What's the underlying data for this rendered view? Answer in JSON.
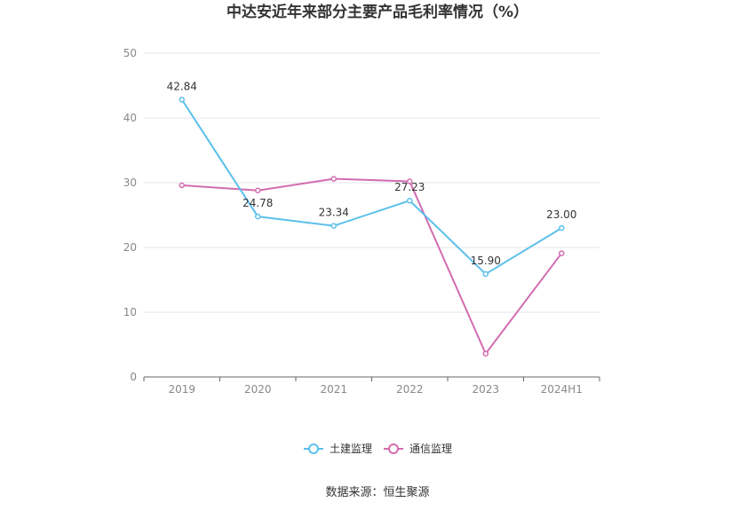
{
  "chart_data": {
    "type": "line",
    "title": "中达安近年来部分主要产品毛利率情况（%）",
    "categories": [
      "2019",
      "2020",
      "2021",
      "2022",
      "2023",
      "2024H1"
    ],
    "ylim": [
      0,
      50
    ],
    "yticks": [
      "0",
      "10",
      "20",
      "30",
      "40",
      "50"
    ],
    "grid": true,
    "legend_position": "bottom",
    "series": [
      {
        "name": "土建监理",
        "color": "#5bc0eb",
        "values": [
          42.84,
          24.78,
          23.34,
          27.23,
          15.9,
          23.0
        ],
        "labels": [
          "42.84",
          "24.78",
          "23.34",
          "27.23",
          "15.90",
          "23.00"
        ]
      },
      {
        "name": "通信监理",
        "color": "#d36cb0",
        "values": [
          29.6,
          28.8,
          30.6,
          30.2,
          3.6,
          19.1
        ]
      }
    ],
    "source": "数据来源：恒生聚源"
  }
}
